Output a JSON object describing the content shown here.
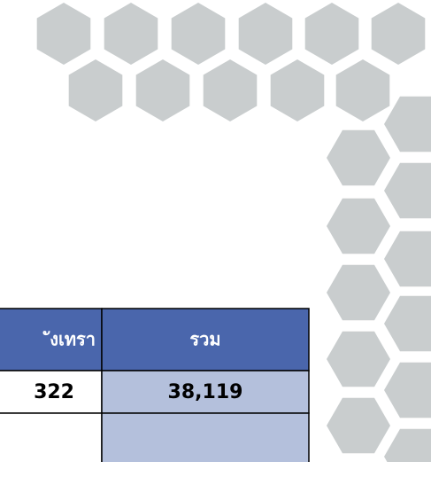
{
  "table": {
    "header": [
      "ังเทรา",
      "รวม"
    ],
    "rows": [
      [
        "322",
        "38,119"
      ]
    ]
  }
}
